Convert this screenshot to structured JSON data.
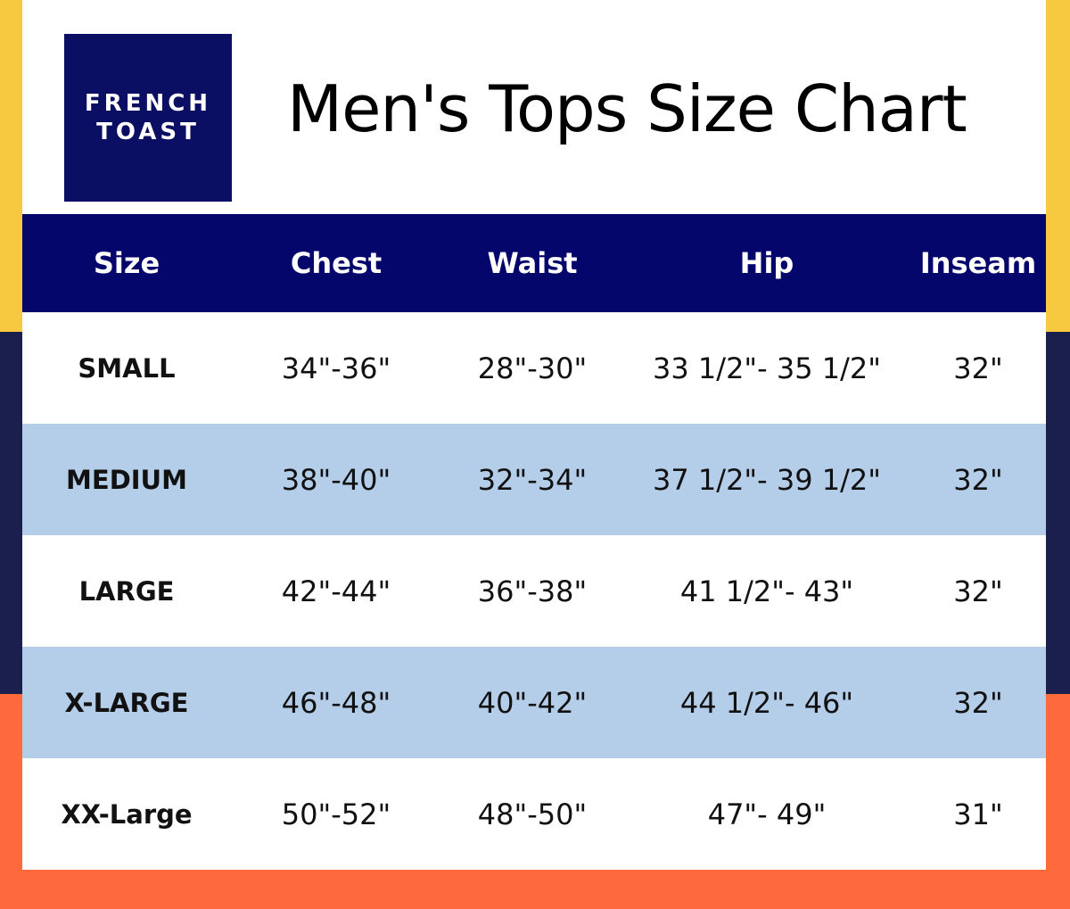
{
  "logo": {
    "line1": "FRENCH",
    "line2": "TOAST"
  },
  "title": "Men's Tops Size Chart",
  "table": {
    "header": [
      "Size",
      "Chest",
      "Waist",
      "Hip",
      "Inseam"
    ],
    "rows": [
      [
        "SMALL",
        "34\"-36\"",
        "28\"-30\"",
        "33 1/2\"- 35 1/2\"",
        "32\""
      ],
      [
        "MEDIUM",
        "38\"-40\"",
        "32\"-34\"",
        "37 1/2\"- 39 1/2\"",
        "32\""
      ],
      [
        "LARGE",
        "42\"-44\"",
        "36\"-38\"",
        "41 1/2\"- 43\"",
        "32\""
      ],
      [
        "X-LARGE",
        "46\"-48\"",
        "40\"-42\"",
        "44 1/2\"- 46\"",
        "32\""
      ],
      [
        "XX-Large",
        "50\"-52\"",
        "48\"-50\"",
        "47\"- 49\"",
        "31\""
      ]
    ]
  }
}
